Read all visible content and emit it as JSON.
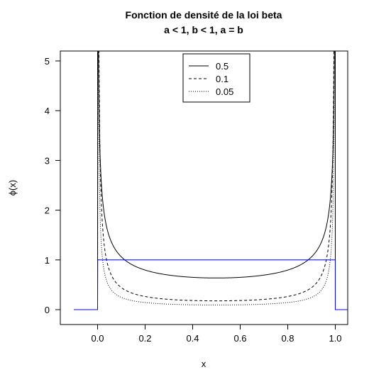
{
  "chart_data": {
    "type": "line",
    "title": "Fonction de densité de la loi beta",
    "subtitle": "a < 1, b < 1, a = b",
    "xlabel": "x",
    "ylabel": "ϕ(x)",
    "xlim": [
      -0.1,
      1.1
    ],
    "ylim": [
      0,
      5.1
    ],
    "x_ticks": [
      0.0,
      0.2,
      0.4,
      0.6,
      0.8,
      1.0
    ],
    "x_tick_labels": [
      "0.0",
      "0.2",
      "0.4",
      "0.6",
      "0.8",
      "1.0"
    ],
    "y_ticks": [
      0,
      1,
      2,
      3,
      4,
      5
    ],
    "y_tick_labels": [
      "0",
      "1",
      "2",
      "3",
      "4",
      "5"
    ],
    "grid": false,
    "legend_position": "top-center",
    "series": [
      {
        "name": "0.5",
        "a": 0.5,
        "b": 0.5,
        "line_style": "solid",
        "color": "#000000"
      },
      {
        "name": "0.1",
        "a": 0.1,
        "b": 0.1,
        "line_style": "dashed",
        "color": "#000000"
      },
      {
        "name": "0.05",
        "a": 0.05,
        "b": 0.05,
        "line_style": "dotted",
        "color": "#000000"
      },
      {
        "a": 1,
        "b": 1,
        "line_style": "solid",
        "color": "#0000ff"
      }
    ]
  }
}
